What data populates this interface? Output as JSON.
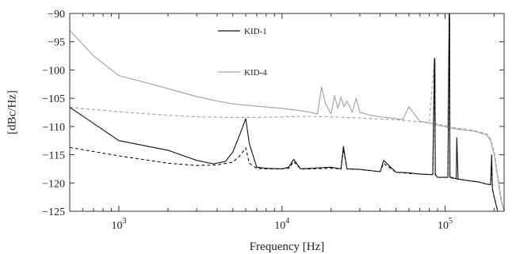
{
  "chart_data": {
    "type": "line",
    "xlabel": "Frequency [Hz]",
    "ylabel": "[dBc/Hz]",
    "xscale": "log",
    "xlim": [
      500,
      230000
    ],
    "ylim": [
      -125,
      -90
    ],
    "yticks": [
      {
        "value": -125,
        "label": "−125"
      },
      {
        "value": -120,
        "label": "−120"
      },
      {
        "value": -115,
        "label": "−115"
      },
      {
        "value": -110,
        "label": "−110"
      },
      {
        "value": -105,
        "label": "−105"
      },
      {
        "value": -100,
        "label": "−100"
      },
      {
        "value": -95,
        "label": "−95"
      },
      {
        "value": -90,
        "label": "−90"
      }
    ],
    "xticks": [
      {
        "value": 1000,
        "base": "10",
        "exp": "3"
      },
      {
        "value": 10000,
        "base": "10",
        "exp": "4"
      },
      {
        "value": 100000,
        "base": "10",
        "exp": "5"
      }
    ],
    "legend": {
      "placement": "top-center"
    },
    "grid": false,
    "series": [
      {
        "name": "KID-1",
        "color": "#111111",
        "style": "solid",
        "x": [
          500,
          1000,
          2000,
          3000,
          3800,
          4500,
          5000,
          5500,
          6000,
          6300,
          7000,
          8000,
          10000,
          11000,
          11800,
          13000,
          15000,
          17000,
          20000,
          23000,
          23800,
          25000,
          30000,
          40000,
          42000,
          50000,
          60000,
          70000,
          80000,
          84000,
          86000,
          86500,
          87000,
          90000,
          100000,
          104000,
          106000,
          106500,
          107000,
          110000,
          115000,
          117000,
          118000,
          120000,
          140000,
          160000,
          180000,
          190000,
          193000,
          195000,
          200000,
          210000
        ],
        "y": [
          -106.6,
          -112.5,
          -114.2,
          -116.0,
          -116.6,
          -116.2,
          -114.5,
          -111.5,
          -108.6,
          -113.0,
          -117.2,
          -117.4,
          -117.5,
          -117.2,
          -115.8,
          -117.5,
          -117.4,
          -117.3,
          -117.2,
          -117.5,
          -113.5,
          -117.5,
          -117.6,
          -118.0,
          -116.0,
          -118.1,
          -118.2,
          -118.4,
          -118.5,
          -118.5,
          -98.0,
          -98.0,
          -118.5,
          -119.0,
          -119.0,
          -119.0,
          -90.0,
          -90.0,
          -119.0,
          -119.0,
          -119.2,
          -119.2,
          -112.0,
          -119.3,
          -119.6,
          -119.8,
          -120.2,
          -120.3,
          -115.0,
          -121.0,
          -122.5,
          -125.0
        ]
      },
      {
        "name": "",
        "color": "#111111",
        "style": "dashed",
        "x": [
          500,
          1000,
          2000,
          3000,
          4000,
          5000,
          5500,
          6000,
          6300,
          7000,
          8000,
          10000,
          11000,
          11800,
          13000,
          15000,
          20000,
          23000,
          23800,
          25000,
          30000,
          40000,
          42000,
          50000,
          60000,
          80000,
          84000,
          86000,
          86500,
          87000,
          90000,
          100000,
          104000,
          106000,
          106500,
          107000,
          110000,
          120000,
          140000,
          160000,
          180000,
          190000,
          193000,
          195000,
          200000,
          210000
        ],
        "y": [
          -113.7,
          -115.2,
          -116.5,
          -116.9,
          -116.8,
          -116.3,
          -115.2,
          -113.8,
          -116.5,
          -117.4,
          -117.5,
          -117.5,
          -117.4,
          -116.2,
          -117.5,
          -117.5,
          -117.4,
          -117.5,
          -114.0,
          -117.5,
          -117.6,
          -118.0,
          -116.5,
          -118.1,
          -118.3,
          -118.5,
          -118.5,
          -99.0,
          -99.0,
          -118.5,
          -119.0,
          -119.0,
          -119.0,
          -91.0,
          -91.0,
          -119.0,
          -119.1,
          -119.3,
          -119.6,
          -119.8,
          -120.2,
          -120.3,
          -116.0,
          -121.0,
          -122.5,
          -125.0
        ]
      },
      {
        "name": "KID-4",
        "color": "#a6a6a6",
        "style": "solid",
        "x": [
          500,
          700,
          1000,
          1500,
          2000,
          3000,
          4000,
          5000,
          7000,
          10000,
          13000,
          15000,
          16500,
          17500,
          18500,
          20000,
          21000,
          22000,
          23000,
          24000,
          25000,
          27000,
          28500,
          30000,
          35000,
          40000,
          50000,
          55000,
          60000,
          70000,
          80000,
          85000,
          86000,
          87000,
          90000,
          100000,
          104000,
          106000,
          106500,
          107000,
          110000,
          120000,
          150000,
          180000,
          190000,
          200000,
          210000,
          220000,
          230000
        ],
        "y": [
          -93.0,
          -97.5,
          -101.0,
          -102.3,
          -103.3,
          -104.7,
          -105.5,
          -106.0,
          -106.4,
          -106.8,
          -107.2,
          -107.5,
          -107.8,
          -103.0,
          -106.0,
          -107.8,
          -104.5,
          -106.8,
          -104.8,
          -106.5,
          -105.5,
          -107.5,
          -105.0,
          -107.5,
          -108.0,
          -108.3,
          -108.6,
          -108.8,
          -106.5,
          -109.1,
          -109.4,
          -109.5,
          -104.0,
          -109.5,
          -109.8,
          -110.0,
          -110.2,
          -90.0,
          -90.0,
          -110.2,
          -110.3,
          -110.5,
          -110.8,
          -111.5,
          -112.5,
          -115.0,
          -119.0,
          -123.0,
          -125.0
        ]
      },
      {
        "name": "",
        "color": "#a6a6a6",
        "style": "dashed",
        "x": [
          500,
          1000,
          2000,
          3000,
          5000,
          7000,
          10000,
          15000,
          20000,
          30000,
          40000,
          50000,
          60000,
          80000,
          86000,
          86500,
          87000,
          90000,
          100000,
          104000,
          106000,
          106500,
          107000,
          110000,
          120000,
          150000,
          180000,
          190000,
          200000,
          210000,
          220000,
          230000
        ],
        "y": [
          -106.6,
          -107.4,
          -108.0,
          -108.3,
          -108.4,
          -108.4,
          -108.3,
          -108.2,
          -108.3,
          -108.5,
          -108.7,
          -108.8,
          -109.0,
          -109.3,
          -98.0,
          -98.0,
          -109.4,
          -109.6,
          -109.8,
          -110.0,
          -90.0,
          -90.0,
          -110.0,
          -110.1,
          -110.3,
          -110.7,
          -111.3,
          -112.2,
          -114.5,
          -118.5,
          -122.5,
          -125.0
        ]
      }
    ]
  }
}
